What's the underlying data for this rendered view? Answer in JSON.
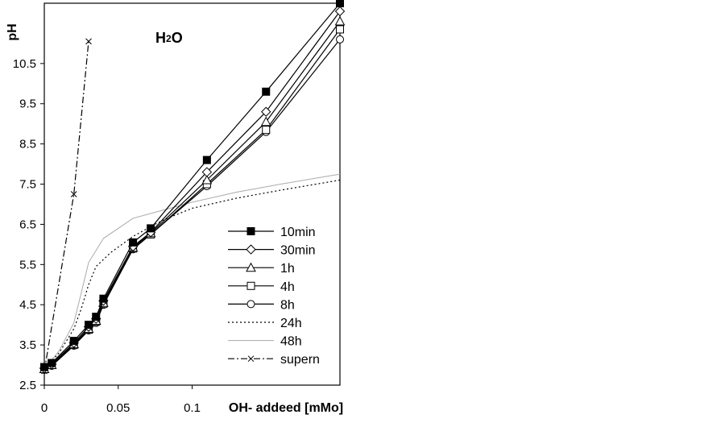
{
  "chart_data": {
    "type": "line",
    "title": "",
    "annotation": {
      "main": "H",
      "sub": "2",
      "tail": "O"
    },
    "xlabel": "OH- addeed [mMo]",
    "ylabel": "pH",
    "xlim": [
      0,
      0.2
    ],
    "ylim": [
      2.5,
      12.0
    ],
    "x_ticks": [
      {
        "value": 0,
        "label": "0"
      },
      {
        "value": 0.05,
        "label": "0.05"
      },
      {
        "value": 0.1,
        "label": "0.1"
      }
    ],
    "y_ticks": [
      {
        "value": 2.5,
        "label": "2.5"
      },
      {
        "value": 3.5,
        "label": "3.5"
      },
      {
        "value": 4.5,
        "label": "4.5"
      },
      {
        "value": 5.5,
        "label": "5.5"
      },
      {
        "value": 6.5,
        "label": "6.5"
      },
      {
        "value": 7.5,
        "label": "7.5"
      },
      {
        "value": 8.5,
        "label": "8.5"
      },
      {
        "value": 9.5,
        "label": "9.5"
      },
      {
        "value": 10.5,
        "label": "10.5"
      }
    ],
    "grid": false,
    "legend_position": "lower-right",
    "series": [
      {
        "name": "10min",
        "marker": "square-filled",
        "line": "solid",
        "color": "#000000",
        "points": [
          [
            0,
            2.95
          ],
          [
            0.005,
            3.05
          ],
          [
            0.02,
            3.6
          ],
          [
            0.03,
            4.0
          ],
          [
            0.035,
            4.2
          ],
          [
            0.04,
            4.65
          ],
          [
            0.06,
            6.05
          ],
          [
            0.072,
            6.4
          ],
          [
            0.11,
            8.1
          ],
          [
            0.15,
            9.8
          ],
          [
            0.2,
            12.0
          ]
        ]
      },
      {
        "name": "30min",
        "marker": "diamond-open",
        "line": "solid",
        "color": "#000000",
        "points": [
          [
            0,
            2.92
          ],
          [
            0.005,
            3.02
          ],
          [
            0.02,
            3.55
          ],
          [
            0.03,
            3.95
          ],
          [
            0.035,
            4.15
          ],
          [
            0.04,
            4.6
          ],
          [
            0.06,
            5.95
          ],
          [
            0.072,
            6.3
          ],
          [
            0.11,
            7.8
          ],
          [
            0.15,
            9.3
          ],
          [
            0.2,
            11.8
          ]
        ]
      },
      {
        "name": "1h",
        "marker": "triangle-open",
        "line": "solid",
        "color": "#000000",
        "points": [
          [
            0,
            2.9
          ],
          [
            0.005,
            3.0
          ],
          [
            0.02,
            3.52
          ],
          [
            0.03,
            3.9
          ],
          [
            0.035,
            4.1
          ],
          [
            0.04,
            4.55
          ],
          [
            0.06,
            5.92
          ],
          [
            0.072,
            6.28
          ],
          [
            0.11,
            7.6
          ],
          [
            0.15,
            9.05
          ],
          [
            0.2,
            11.55
          ]
        ]
      },
      {
        "name": "4h",
        "marker": "square-open",
        "line": "solid",
        "color": "#000000",
        "points": [
          [
            0,
            2.9
          ],
          [
            0.005,
            3.0
          ],
          [
            0.02,
            3.5
          ],
          [
            0.03,
            3.88
          ],
          [
            0.035,
            4.08
          ],
          [
            0.04,
            4.52
          ],
          [
            0.06,
            5.9
          ],
          [
            0.072,
            6.25
          ],
          [
            0.11,
            7.5
          ],
          [
            0.15,
            8.85
          ],
          [
            0.2,
            11.35
          ]
        ]
      },
      {
        "name": "8h",
        "marker": "circle-open",
        "line": "solid",
        "color": "#000000",
        "points": [
          [
            0,
            2.88
          ],
          [
            0.005,
            2.98
          ],
          [
            0.02,
            3.48
          ],
          [
            0.03,
            3.86
          ],
          [
            0.035,
            4.05
          ],
          [
            0.04,
            4.5
          ],
          [
            0.06,
            5.88
          ],
          [
            0.072,
            6.25
          ],
          [
            0.11,
            7.45
          ],
          [
            0.15,
            8.8
          ],
          [
            0.2,
            11.1
          ]
        ]
      },
      {
        "name": "24h",
        "marker": "none",
        "line": "dotted",
        "color": "#000000",
        "points": [
          [
            0,
            2.9
          ],
          [
            0.01,
            3.3
          ],
          [
            0.02,
            3.9
          ],
          [
            0.025,
            4.4
          ],
          [
            0.03,
            5.0
          ],
          [
            0.035,
            5.45
          ],
          [
            0.045,
            5.8
          ],
          [
            0.06,
            6.2
          ],
          [
            0.08,
            6.6
          ],
          [
            0.1,
            6.9
          ],
          [
            0.13,
            7.15
          ],
          [
            0.16,
            7.35
          ],
          [
            0.2,
            7.6
          ]
        ]
      },
      {
        "name": "48h",
        "marker": "none",
        "line": "solid-gray",
        "color": "#aaaaaa",
        "points": [
          [
            0,
            2.9
          ],
          [
            0.01,
            3.35
          ],
          [
            0.02,
            4.05
          ],
          [
            0.025,
            4.8
          ],
          [
            0.03,
            5.55
          ],
          [
            0.04,
            6.15
          ],
          [
            0.05,
            6.4
          ],
          [
            0.06,
            6.65
          ],
          [
            0.08,
            6.85
          ],
          [
            0.1,
            7.05
          ],
          [
            0.13,
            7.3
          ],
          [
            0.16,
            7.5
          ],
          [
            0.2,
            7.75
          ]
        ]
      },
      {
        "name": "supern",
        "marker": "x",
        "line": "dashdot",
        "color": "#000000",
        "points": [
          [
            0,
            2.85
          ],
          [
            0.02,
            7.25
          ],
          [
            0.03,
            11.05
          ]
        ]
      }
    ]
  }
}
